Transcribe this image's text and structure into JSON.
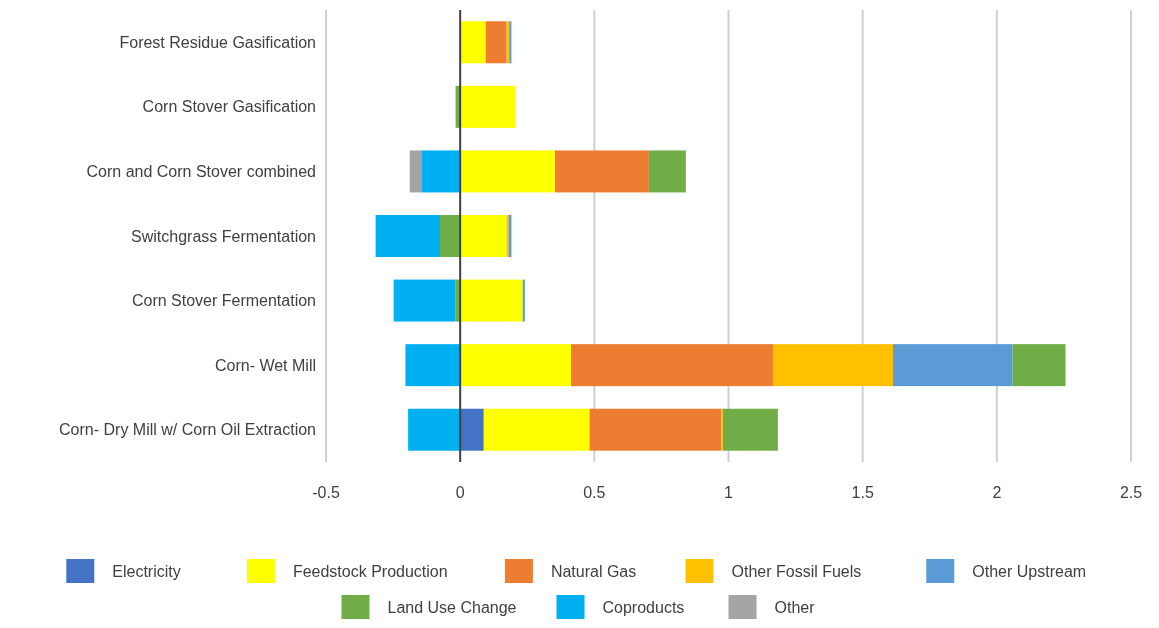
{
  "chart_data": {
    "type": "bar",
    "orientation": "horizontal",
    "stacked": true,
    "categories": [
      "Forest Residue Gasification",
      "Corn Stover Gasification",
      "Corn and Corn Stover combined",
      "Switchgrass Fermentation",
      "Corn Stover Fermentation",
      "Corn- Wet Mill",
      "Corn- Dry Mill w/ Corn Oil Extraction"
    ],
    "series": [
      {
        "name": "Electricity",
        "color": "#4472c4",
        "values": [
          0,
          0,
          0,
          0,
          0,
          0,
          0.088
        ]
      },
      {
        "name": "Feedstock Production",
        "color": "#ffff00",
        "values": [
          0.095,
          0.207,
          0.353,
          0.173,
          0.233,
          0.413,
          0.394
        ]
      },
      {
        "name": "Natural Gas",
        "color": "#ed7d31",
        "values": [
          0.078,
          0,
          0.35,
          0,
          0,
          0.755,
          0.491
        ]
      },
      {
        "name": "Other Fossil Fuels",
        "color": "#ffc000",
        "values": [
          0.01,
          0,
          0,
          0.008,
          0,
          0.445,
          0.006
        ]
      },
      {
        "name": "Other Upstream",
        "color": "#5b9bd5",
        "values": [
          0.008,
          0,
          0,
          0.01,
          0.008,
          0.446,
          0
        ]
      },
      {
        "name": "Land Use Change",
        "color": "#70ad47",
        "values": [
          0,
          -0.017,
          0.138,
          -0.075,
          -0.017,
          0.197,
          0.205
        ]
      },
      {
        "name": "Coproducts",
        "color": "#00b0f0",
        "values": [
          0,
          0,
          -0.145,
          -0.24,
          -0.231,
          -0.204,
          -0.194
        ]
      },
      {
        "name": "Other",
        "color": "#a5a5a5",
        "values": [
          0,
          0,
          -0.043,
          0,
          0,
          0,
          0
        ]
      }
    ],
    "xlim": [
      -0.5,
      2.5
    ],
    "xticks": [
      -0.5,
      0,
      0.5,
      1,
      1.5,
      2,
      2.5
    ],
    "grid": "x",
    "legend": "bottom"
  }
}
